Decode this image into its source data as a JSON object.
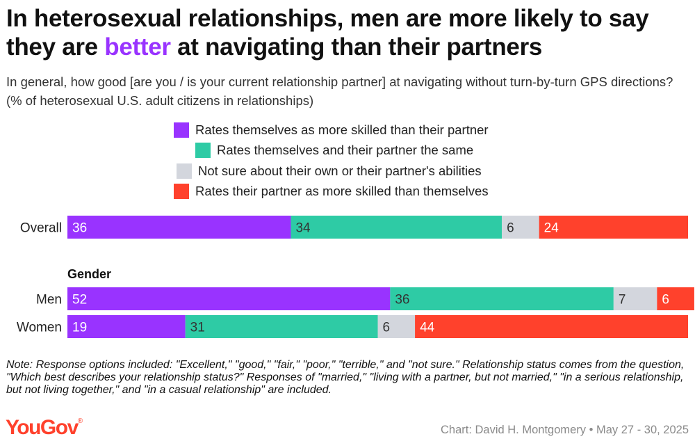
{
  "title": {
    "before": "In heterosexual relationships, men are more likely to say they are ",
    "highlight": "better",
    "after": " at navigating than their partners",
    "highlight_color": "#9933ff"
  },
  "subtitle": "In general, how good [are you / is your current relationship partner] at navigating without turn-by-turn GPS directions? (% of heterosexual U.S. adult citizens in relationships)",
  "chart_data": {
    "type": "bar",
    "orientation": "horizontal",
    "stacked": true,
    "categories": [
      "Overall",
      "Men",
      "Women"
    ],
    "group_label": "Gender",
    "series": [
      {
        "name": "Rates themselves as more skilled than their partner",
        "color": "#9933ff",
        "values": [
          36,
          52,
          19
        ]
      },
      {
        "name": "Rates themselves and their partner the same",
        "color": "#2ecba5",
        "values": [
          34,
          36,
          31
        ]
      },
      {
        "name": "Not sure about their own or their partner's abilities",
        "color": "#d3d6dd",
        "values": [
          6,
          7,
          6
        ]
      },
      {
        "name": "Rates their partner as more skilled than themselves",
        "color": "#ff412c",
        "values": [
          24,
          6,
          44
        ]
      }
    ],
    "legend_position": "top"
  },
  "note": "Note: Response options included: \"Excellent,\" \"good,\" \"fair,\" \"poor,\" \"terrible,\" and \"not sure.\" Relationship status comes from the question, \"Which best describes your relationship status?\" Responses of \"married,\" \"living with a partner, but not married,\" \"in a serious relationship, but not living together,\" and \"in a casual relationship\" are included.",
  "logo": {
    "text": "YouGov",
    "mark": "®",
    "color": "#ff412c"
  },
  "credit": "Chart: David H. Montgomery • May 27 - 30, 2025"
}
